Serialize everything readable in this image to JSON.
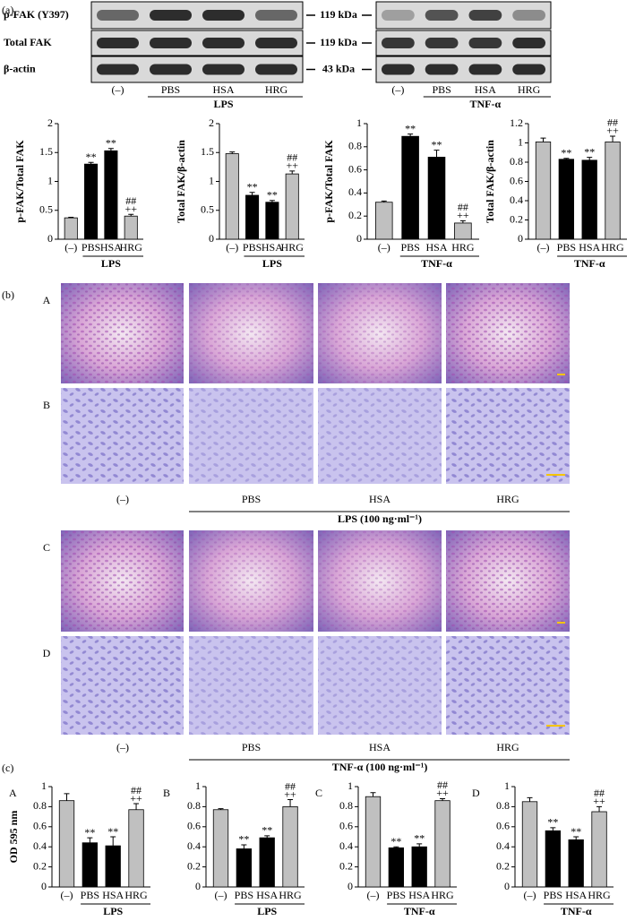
{
  "figure": {
    "panel_labels": [
      "(a)",
      "(b)",
      "(c)"
    ]
  },
  "blots": {
    "rows": [
      "p-FAK (Y397)",
      "Total FAK",
      "β-actin"
    ],
    "sizes": [
      "119 kDa",
      "119 kDa",
      "43 kDa"
    ],
    "groups": [
      {
        "control": "(–)",
        "treatments": [
          "PBS",
          "HSA",
          "HRG"
        ],
        "stimulus": "LPS"
      },
      {
        "control": "(–)",
        "treatments": [
          "PBS",
          "HSA",
          "HRG"
        ],
        "stimulus": "TNF-α"
      }
    ]
  },
  "micrographs": {
    "rows": [
      "A",
      "B",
      "C",
      "D"
    ],
    "sets": [
      {
        "control": "(–)",
        "treatments": [
          "PBS",
          "HSA",
          "HRG"
        ],
        "stimulus": "LPS (100 ng·ml⁻¹)"
      },
      {
        "control": "(–)",
        "treatments": [
          "PBS",
          "HSA",
          "HRG"
        ],
        "stimulus": "TNF-α (100 ng·ml⁻¹)"
      }
    ]
  },
  "chart_data": [
    {
      "type": "bar",
      "ylabel": "p-FAK/Total FAK",
      "categories": [
        "(–)",
        "PBS",
        "HSA",
        "HRG"
      ],
      "group_label": "LPS",
      "values": [
        0.37,
        1.3,
        1.53,
        0.4
      ],
      "errors": [
        0.01,
        0.03,
        0.04,
        0.03
      ],
      "annotations": [
        [],
        [
          "**"
        ],
        [
          "**"
        ],
        [
          "##",
          "++"
        ]
      ],
      "bar_colors": [
        "#c0c0c0",
        "#000000",
        "#000000",
        "#c0c0c0"
      ],
      "ylim": [
        0,
        2
      ],
      "yticks": [
        0,
        0.5,
        1,
        1.5,
        2
      ]
    },
    {
      "type": "bar",
      "ylabel": "Total FAK/β-actin",
      "categories": [
        "(–)",
        "PBS",
        "HSA",
        "HRG"
      ],
      "group_label": "LPS",
      "values": [
        1.48,
        0.76,
        0.64,
        1.13
      ],
      "errors": [
        0.03,
        0.05,
        0.03,
        0.05
      ],
      "annotations": [
        [],
        [
          "**"
        ],
        [
          "**"
        ],
        [
          "##",
          "++"
        ]
      ],
      "bar_colors": [
        "#c0c0c0",
        "#000000",
        "#000000",
        "#c0c0c0"
      ],
      "ylim": [
        0,
        2
      ],
      "yticks": [
        0,
        0.5,
        1,
        1.5,
        2
      ]
    },
    {
      "type": "bar",
      "ylabel": "p-FAK/Total FAK",
      "categories": [
        "(–)",
        "PBS",
        "HSA",
        "HRG"
      ],
      "group_label": "TNF-α",
      "values": [
        0.32,
        0.89,
        0.71,
        0.14
      ],
      "errors": [
        0.01,
        0.02,
        0.06,
        0.02
      ],
      "annotations": [
        [],
        [
          "**"
        ],
        [
          "**"
        ],
        [
          "##",
          "++"
        ]
      ],
      "bar_colors": [
        "#c0c0c0",
        "#000000",
        "#000000",
        "#c0c0c0"
      ],
      "ylim": [
        0,
        1
      ],
      "yticks": [
        0,
        0.2,
        0.4,
        0.6,
        0.8,
        1
      ]
    },
    {
      "type": "bar",
      "ylabel": "Total FAK/β-actin",
      "categories": [
        "(–)",
        "PBS",
        "HSA",
        "HRG"
      ],
      "group_label": "TNF-α",
      "values": [
        1.01,
        0.83,
        0.82,
        1.01
      ],
      "errors": [
        0.04,
        0.01,
        0.03,
        0.06
      ],
      "annotations": [
        [],
        [
          "**"
        ],
        [
          "**"
        ],
        [
          "##",
          "++"
        ]
      ],
      "bar_colors": [
        "#c0c0c0",
        "#000000",
        "#000000",
        "#c0c0c0"
      ],
      "ylim": [
        0,
        1.2
      ],
      "yticks": [
        0,
        0.2,
        0.4,
        0.6,
        0.8,
        1,
        1.2
      ]
    },
    {
      "type": "bar",
      "panel": "A",
      "ylabel": "OD 595 nm",
      "categories": [
        "(–)",
        "PBS",
        "HSA",
        "HRG"
      ],
      "group_label": "LPS",
      "values": [
        0.86,
        0.44,
        0.41,
        0.77
      ],
      "errors": [
        0.07,
        0.05,
        0.09,
        0.06
      ],
      "annotations": [
        [],
        [
          "**"
        ],
        [
          "**"
        ],
        [
          "##",
          "++"
        ]
      ],
      "bar_colors": [
        "#c0c0c0",
        "#000000",
        "#000000",
        "#c0c0c0"
      ],
      "ylim": [
        0,
        1
      ],
      "yticks": [
        0,
        0.2,
        0.4,
        0.6,
        0.8,
        1
      ]
    },
    {
      "type": "bar",
      "panel": "B",
      "categories": [
        "(–)",
        "PBS",
        "HSA",
        "HRG"
      ],
      "group_label": "LPS",
      "values": [
        0.77,
        0.38,
        0.49,
        0.8
      ],
      "errors": [
        0.01,
        0.04,
        0.02,
        0.07
      ],
      "annotations": [
        [],
        [
          "**"
        ],
        [
          "**"
        ],
        [
          "##",
          "++"
        ]
      ],
      "bar_colors": [
        "#c0c0c0",
        "#000000",
        "#000000",
        "#c0c0c0"
      ],
      "ylim": [
        0,
        1
      ],
      "yticks": [
        0,
        0.2,
        0.4,
        0.6,
        0.8,
        1
      ]
    },
    {
      "type": "bar",
      "panel": "C",
      "categories": [
        "(–)",
        "PBS",
        "HSA",
        "HRG"
      ],
      "group_label": "TNF-α",
      "values": [
        0.9,
        0.39,
        0.4,
        0.86
      ],
      "errors": [
        0.04,
        0.01,
        0.03,
        0.02
      ],
      "annotations": [
        [],
        [
          "**"
        ],
        [
          "**"
        ],
        [
          "##",
          "++"
        ]
      ],
      "bar_colors": [
        "#c0c0c0",
        "#000000",
        "#000000",
        "#c0c0c0"
      ],
      "ylim": [
        0,
        1
      ],
      "yticks": [
        0,
        0.2,
        0.4,
        0.6,
        0.8,
        1
      ]
    },
    {
      "type": "bar",
      "panel": "D",
      "categories": [
        "(–)",
        "PBS",
        "HSA",
        "HRG"
      ],
      "group_label": "TNF-α",
      "values": [
        0.85,
        0.56,
        0.47,
        0.75
      ],
      "errors": [
        0.04,
        0.03,
        0.03,
        0.05
      ],
      "annotations": [
        [],
        [
          "**"
        ],
        [
          "**"
        ],
        [
          "##",
          "++"
        ]
      ],
      "bar_colors": [
        "#c0c0c0",
        "#000000",
        "#000000",
        "#c0c0c0"
      ],
      "ylim": [
        0,
        1
      ],
      "yticks": [
        0,
        0.2,
        0.4,
        0.6,
        0.8,
        1
      ]
    }
  ]
}
